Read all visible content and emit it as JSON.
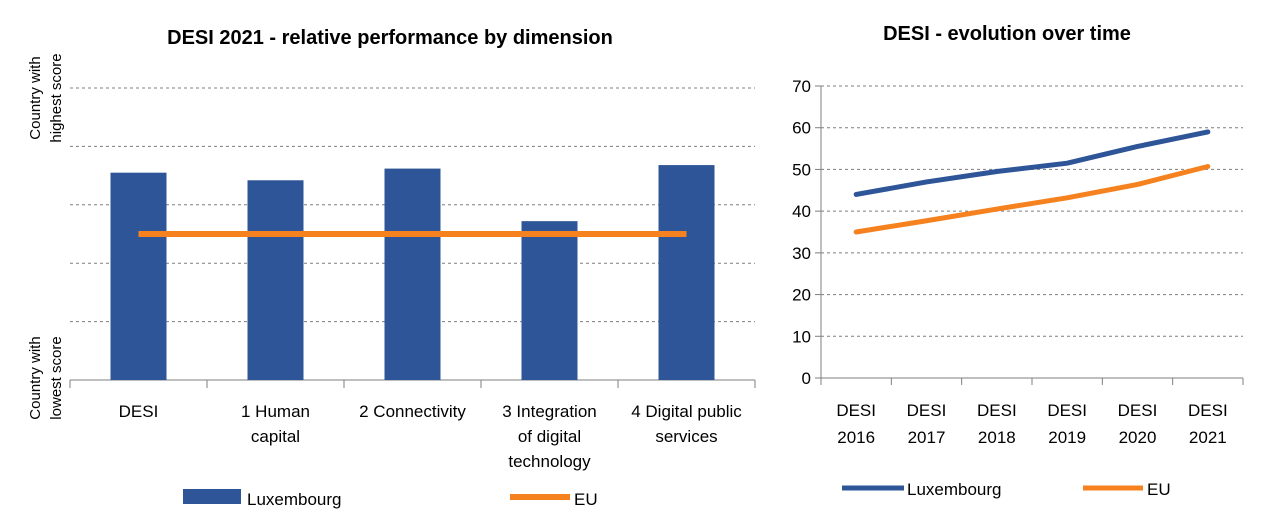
{
  "colors": {
    "luxembourg": "#2e5597",
    "eu": "#f5821f",
    "grid": "#7f7f7f",
    "axis": "#7f7f7f",
    "text": "#000000"
  },
  "chart_data": [
    {
      "type": "bar",
      "title": "DESI 2021 -  relative performance by dimension",
      "ylabel_top": "Country with highest score",
      "ylabel_bottom": "Country with lowest score",
      "categories": [
        [
          "DESI"
        ],
        [
          "1 Human",
          "capital"
        ],
        [
          "2 Connectivity"
        ],
        [
          "3 Integration",
          "of digital",
          "technology"
        ],
        [
          "4 Digital public",
          "services"
        ]
      ],
      "ylim": [
        0,
        5
      ],
      "grid": true,
      "legend_position": "bottom",
      "series": [
        {
          "name": "Luxembourg",
          "kind": "bar",
          "values": [
            3.55,
            3.42,
            3.62,
            2.72,
            3.68
          ]
        },
        {
          "name": "EU",
          "kind": "line",
          "values": [
            2.5,
            2.5,
            2.5,
            2.5,
            2.5
          ]
        }
      ]
    },
    {
      "type": "line",
      "title": "DESI - evolution over time",
      "x": [
        [
          "DESI",
          "2016"
        ],
        [
          "DESI",
          "2017"
        ],
        [
          "DESI",
          "2018"
        ],
        [
          "DESI",
          "2019"
        ],
        [
          "DESI",
          "2020"
        ],
        [
          "DESI",
          "2021"
        ]
      ],
      "ylim": [
        0,
        70
      ],
      "yticks": [
        "0",
        "10",
        "20",
        "30",
        "40",
        "50",
        "60",
        "70"
      ],
      "grid": true,
      "legend_position": "bottom",
      "series": [
        {
          "name": "Luxembourg",
          "values": [
            44,
            47,
            49.5,
            51.5,
            55.5,
            59
          ]
        },
        {
          "name": "EU",
          "values": [
            35,
            37.7,
            40.5,
            43.2,
            46.4,
            50.7
          ]
        }
      ]
    }
  ]
}
